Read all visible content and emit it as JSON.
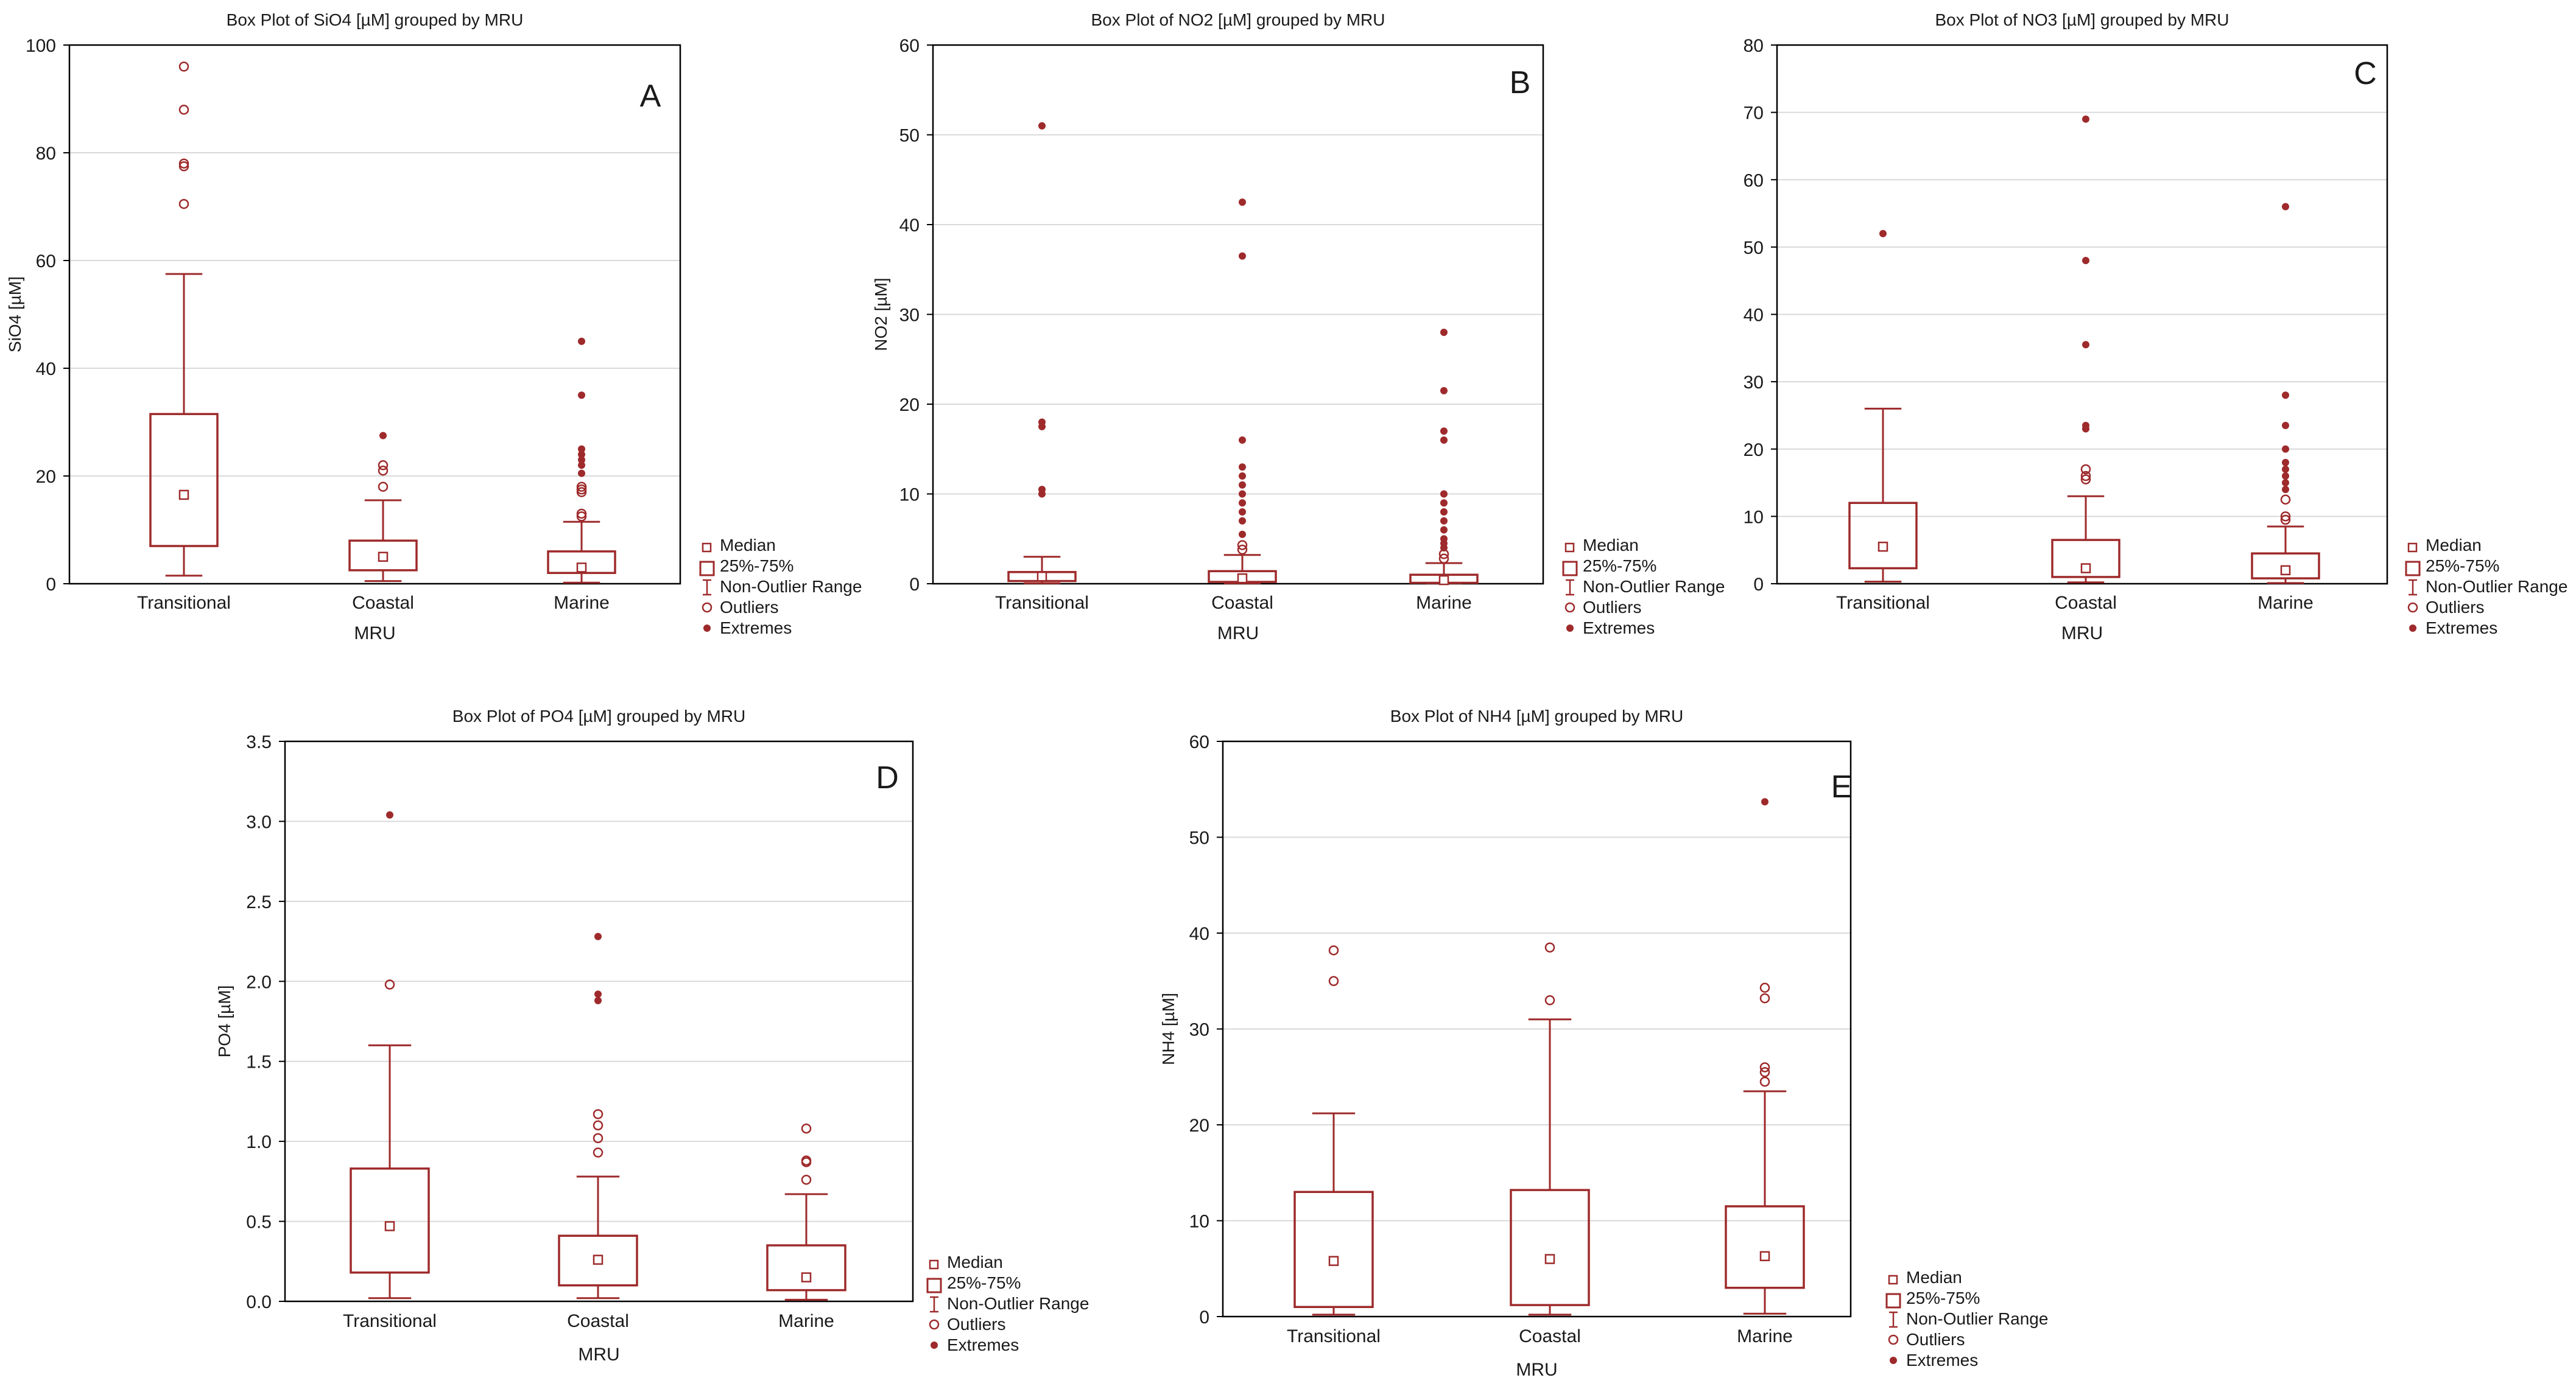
{
  "colors": {
    "mark": "#9e2a2b",
    "grid": "#d9d9d9",
    "axis": "#000000"
  },
  "legend": {
    "median": "Median",
    "box": "25%-75%",
    "whisker": "Non-Outlier Range",
    "outliers": "Outliers",
    "extremes": "Extremes"
  },
  "chart_data": [
    {
      "type": "boxplot",
      "panel": "A",
      "title": "Box Plot of SiO4 [µM] grouped by  MRU",
      "xlabel": "MRU",
      "ylabel": "SiO4 [µM]",
      "ylim": [
        0,
        100
      ],
      "yticks": [
        0,
        20,
        40,
        60,
        80,
        100
      ],
      "categories": [
        "Transitional",
        "Coastal",
        "Marine"
      ],
      "groups": [
        {
          "median": 16.5,
          "q1": 7,
          "q3": 31.5,
          "whisker_low": 1.5,
          "whisker_high": 57.5,
          "outliers": [
            70.5,
            77.5,
            78,
            88,
            96
          ],
          "extremes": []
        },
        {
          "median": 5,
          "q1": 2.5,
          "q3": 8,
          "whisker_low": 0.5,
          "whisker_high": 15.5,
          "outliers": [
            18,
            21,
            22
          ],
          "extremes": [
            27.5
          ]
        },
        {
          "median": 3,
          "q1": 2,
          "q3": 6,
          "whisker_low": 0.2,
          "whisker_high": 11.5,
          "outliers": [
            12.5,
            13,
            17,
            17.5,
            18
          ],
          "extremes": [
            20.5,
            22,
            23,
            24,
            25,
            35,
            45
          ]
        }
      ]
    },
    {
      "type": "boxplot",
      "panel": "B",
      "title": "Box Plot of NO2 [µM] grouped by  MRU",
      "xlabel": "MRU",
      "ylabel": "NO2 [µM]",
      "ylim": [
        0,
        60
      ],
      "yticks": [
        0,
        10,
        20,
        30,
        40,
        50,
        60
      ],
      "categories": [
        "Transitional",
        "Coastal",
        "Marine"
      ],
      "groups": [
        {
          "median": 0.8,
          "q1": 0.3,
          "q3": 1.3,
          "whisker_low": 0.05,
          "whisker_high": 3,
          "outliers": [],
          "extremes": [
            10,
            10.5,
            17.5,
            18,
            51
          ]
        },
        {
          "median": 0.6,
          "q1": 0.2,
          "q3": 1.4,
          "whisker_low": 0.05,
          "whisker_high": 3.2,
          "outliers": [
            3.8,
            4.3
          ],
          "extremes": [
            5.5,
            7,
            8,
            9,
            10,
            11,
            12,
            13,
            16,
            36.5,
            42.5
          ]
        },
        {
          "median": 0.4,
          "q1": 0.1,
          "q3": 1,
          "whisker_low": 0.05,
          "whisker_high": 2.3,
          "outliers": [
            2.8,
            3.3
          ],
          "extremes": [
            4,
            4.5,
            5,
            6,
            7,
            8,
            9,
            10,
            16,
            17,
            21.5,
            28
          ]
        }
      ]
    },
    {
      "type": "boxplot",
      "panel": "C",
      "title": "Box Plot of NO3 [µM] grouped by  MRU",
      "xlabel": "MRU",
      "ylabel": "",
      "ylim": [
        0,
        80
      ],
      "yticks": [
        0,
        10,
        20,
        30,
        40,
        50,
        60,
        70,
        80
      ],
      "categories": [
        "Transitional",
        "Coastal",
        "Marine"
      ],
      "groups": [
        {
          "median": 5.5,
          "q1": 2.3,
          "q3": 12,
          "whisker_low": 0.3,
          "whisker_high": 26,
          "outliers": [],
          "extremes": [
            52
          ]
        },
        {
          "median": 2.3,
          "q1": 1,
          "q3": 6.5,
          "whisker_low": 0.2,
          "whisker_high": 13,
          "outliers": [
            15.5,
            16,
            17
          ],
          "extremes": [
            23,
            23.5,
            35.5,
            48,
            69
          ]
        },
        {
          "median": 2,
          "q1": 0.8,
          "q3": 4.5,
          "whisker_low": 0.1,
          "whisker_high": 8.5,
          "outliers": [
            9.5,
            10,
            12.5
          ],
          "extremes": [
            14,
            15,
            16,
            17,
            18,
            20,
            23.5,
            28,
            56
          ]
        }
      ]
    },
    {
      "type": "boxplot",
      "panel": "D",
      "title": "Box Plot of PO4 [µM] grouped by  MRU",
      "xlabel": "MRU",
      "ylabel": "PO4 [µM]",
      "ylim": [
        0,
        3.5
      ],
      "yticks": [
        "0.0",
        "0.5",
        "1.0",
        "1.5",
        "2.0",
        "2.5",
        "3.0",
        "3.5"
      ],
      "categories": [
        "Transitional",
        "Coastal",
        "Marine"
      ],
      "groups": [
        {
          "median": 0.47,
          "q1": 0.18,
          "q3": 0.83,
          "whisker_low": 0.02,
          "whisker_high": 1.6,
          "outliers": [
            1.98
          ],
          "extremes": [
            3.04
          ]
        },
        {
          "median": 0.26,
          "q1": 0.1,
          "q3": 0.41,
          "whisker_low": 0.02,
          "whisker_high": 0.78,
          "outliers": [
            0.93,
            1.02,
            1.1,
            1.17
          ],
          "extremes": [
            1.88,
            1.92,
            2.28
          ]
        },
        {
          "median": 0.15,
          "q1": 0.07,
          "q3": 0.35,
          "whisker_low": 0.01,
          "whisker_high": 0.67,
          "outliers": [
            0.76,
            0.87,
            0.88,
            1.08
          ],
          "extremes": []
        }
      ]
    },
    {
      "type": "boxplot",
      "panel": "E",
      "title": "Box Plot of NH4 [µM] grouped by  MRU",
      "xlabel": "MRU",
      "ylabel": "NH4 [µM]",
      "ylim": [
        0,
        60
      ],
      "yticks": [
        0,
        10,
        20,
        30,
        40,
        50,
        60
      ],
      "categories": [
        "Transitional",
        "Coastal",
        "Marine"
      ],
      "groups": [
        {
          "median": 5.8,
          "q1": 1,
          "q3": 13,
          "whisker_low": 0.2,
          "whisker_high": 21.2,
          "outliers": [
            35,
            38.2
          ],
          "extremes": []
        },
        {
          "median": 6,
          "q1": 1.2,
          "q3": 13.2,
          "whisker_low": 0.2,
          "whisker_high": 31,
          "outliers": [
            33,
            38.5
          ],
          "extremes": []
        },
        {
          "median": 6.3,
          "q1": 3,
          "q3": 11.5,
          "whisker_low": 0.3,
          "whisker_high": 23.5,
          "outliers": [
            24.5,
            25.5,
            26,
            33.2,
            34.3
          ],
          "extremes": [
            53.7
          ]
        }
      ]
    }
  ]
}
